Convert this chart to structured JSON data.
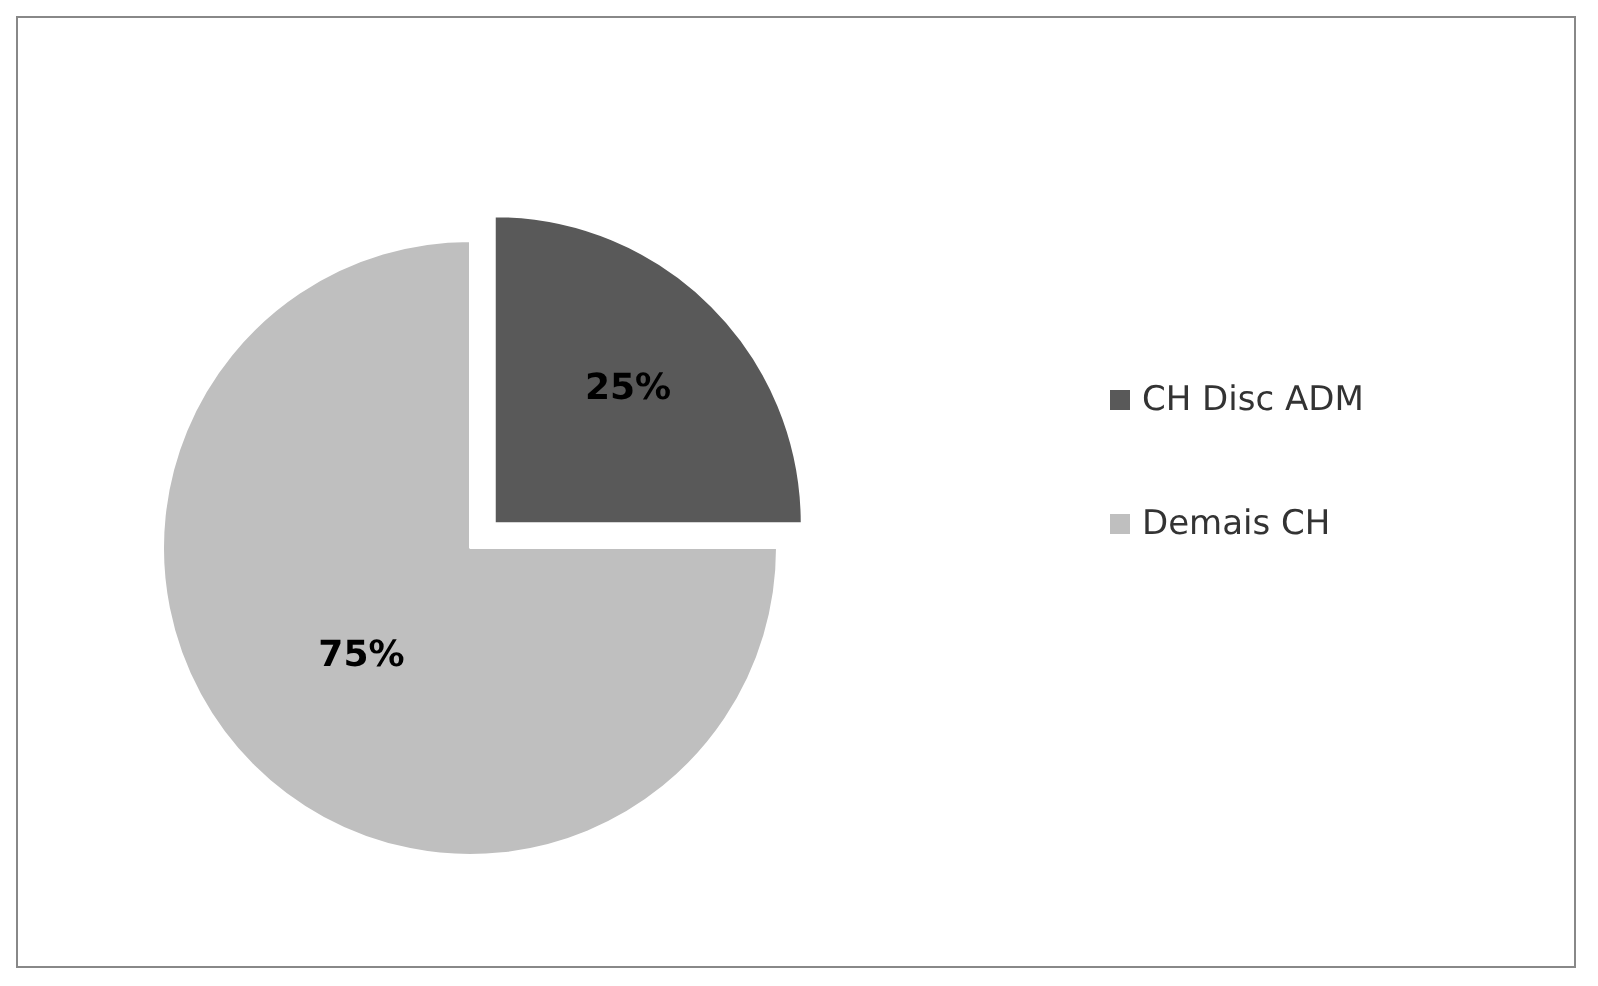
{
  "chart_data": {
    "type": "pie",
    "categories": [
      "CH Disc ADM",
      "Demais CH"
    ],
    "values": [
      25,
      75
    ],
    "colors": [
      "#595959",
      "#bfbfbf"
    ],
    "value_labels": [
      "25%",
      "75%"
    ],
    "legend": "right"
  }
}
